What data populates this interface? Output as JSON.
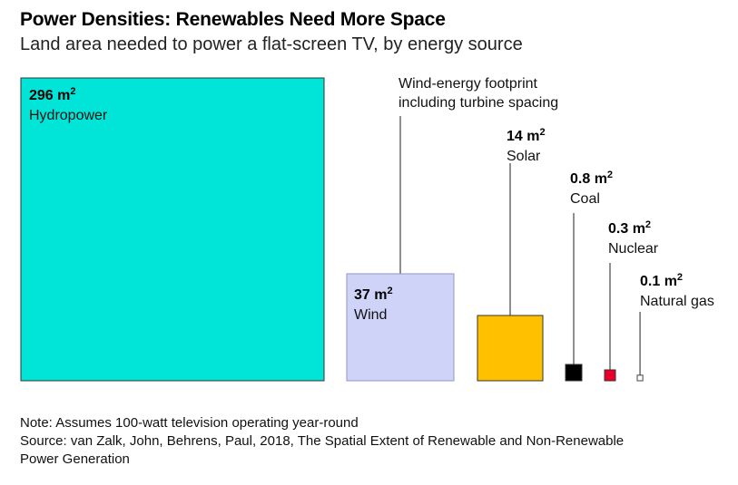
{
  "title": "Power Densities: Renewables Need More Space",
  "subtitle": "Land area needed to power a flat-screen TV, by energy source",
  "chart_data": {
    "type": "area-squares",
    "unit": "m²",
    "items": [
      {
        "key": "hydro",
        "value_label": "296 m",
        "sup": "2",
        "name": "Hydropower",
        "value": 296,
        "color": "#00e5d8"
      },
      {
        "key": "wind",
        "value_label": "37 m",
        "sup": "2",
        "name": "Wind",
        "value": 37,
        "color": "#cfd3f8"
      },
      {
        "key": "solar",
        "value_label": "14 m",
        "sup": "2",
        "name": "Solar",
        "value": 14,
        "color": "#ffc000"
      },
      {
        "key": "coal",
        "value_label": "0.8 m",
        "sup": "2",
        "name": "Coal",
        "value": 0.8,
        "color": "#000000"
      },
      {
        "key": "nuclear",
        "value_label": "0.3 m",
        "sup": "2",
        "name": "Nuclear",
        "value": 0.3,
        "color": "#e8002a"
      },
      {
        "key": "gas",
        "value_label": "0.1 m",
        "sup": "2",
        "name": "Natural gas",
        "value": 0.1,
        "color": "#ffffff"
      }
    ],
    "wind_annotation": [
      "Wind-energy footprint",
      "including turbine spacing"
    ]
  },
  "note": "Note: Assumes 100-watt television operating year-round",
  "source_line1": "Source: van Zalk, John, Behrens, Paul, 2018, The Spatial Extent of Renewable and Non-Renewable",
  "source_line2": "Power Generation"
}
